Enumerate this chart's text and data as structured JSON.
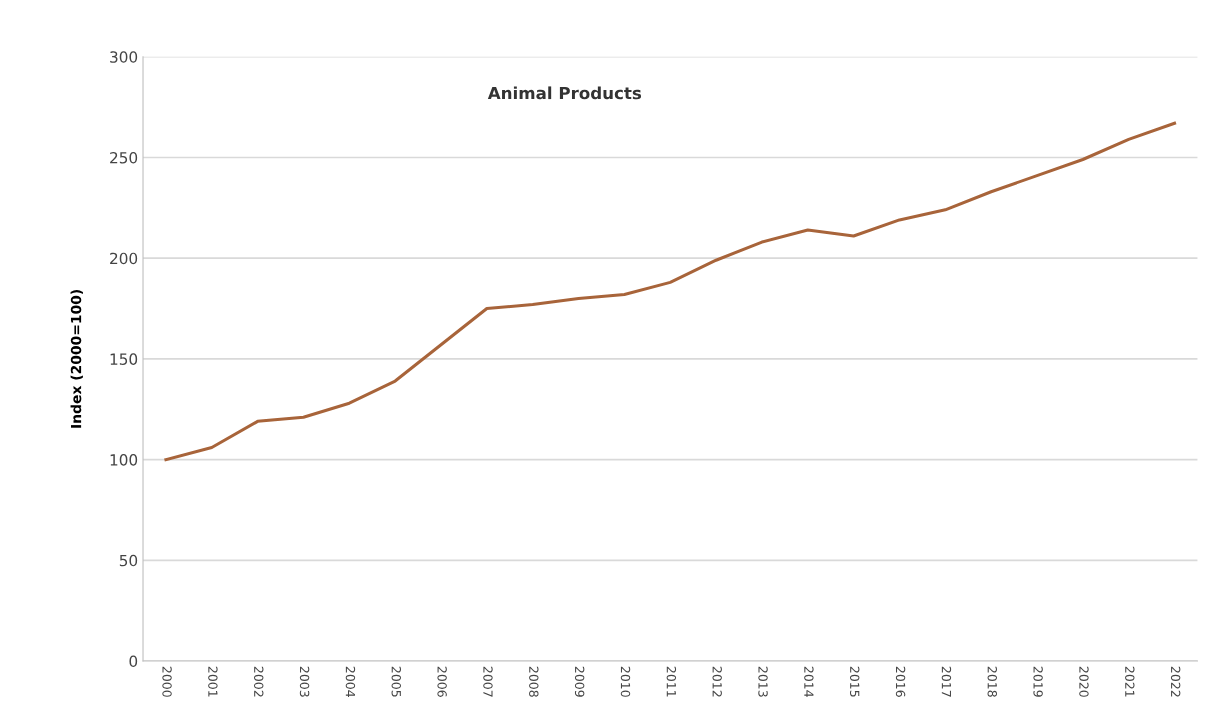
{
  "chart_data": {
    "type": "line",
    "title": "Animal Products",
    "ylabel": "Index (2000=100)",
    "categories": [
      "2000",
      "2001",
      "2002",
      "2003",
      "2004",
      "2005",
      "2006",
      "2007",
      "2008",
      "2009",
      "2010",
      "2011",
      "2012",
      "2013",
      "2014",
      "2015",
      "2016",
      "2017",
      "2018",
      "2019",
      "2020",
      "2021",
      "2022"
    ],
    "series": [
      {
        "color": "#a8643a",
        "values": [
          100,
          106,
          119,
          121,
          128,
          139,
          157,
          175,
          177,
          180,
          182,
          188,
          199,
          208,
          214,
          211,
          219,
          224,
          233,
          241,
          249,
          259,
          267
        ]
      }
    ],
    "ylim": [
      0,
      300
    ],
    "yticks": [
      0,
      50,
      100,
      150,
      200,
      250,
      300
    ],
    "grid": "y",
    "legend": false,
    "marker": "none",
    "line_style": "solid"
  }
}
